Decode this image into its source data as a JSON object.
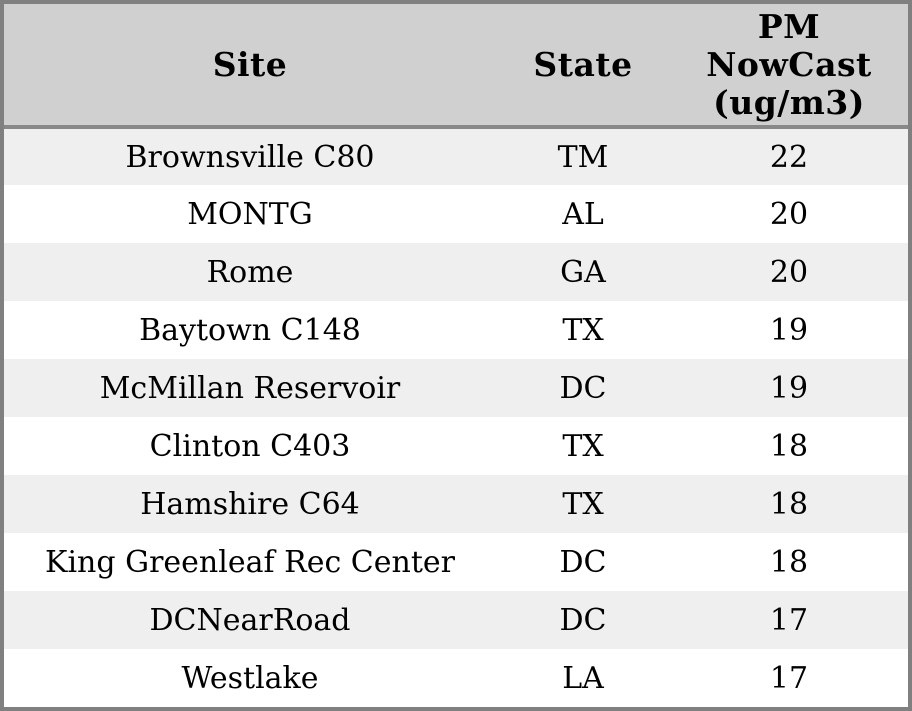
{
  "colors": {
    "outer_border": "#808080",
    "header_bg": "#d0d0d0",
    "header_separator": "#888888",
    "row_stripe_bg": "#efefef",
    "row_bg": "#ffffff",
    "text": "#000000"
  },
  "table": {
    "headers": {
      "site": "Site",
      "state": "State",
      "pm": "PM NowCast (ug/m3)"
    },
    "rows": [
      {
        "site": "Brownsville C80",
        "state": "TM",
        "pm": 22
      },
      {
        "site": "MONTG",
        "state": "AL",
        "pm": 20
      },
      {
        "site": "Rome",
        "state": "GA",
        "pm": 20
      },
      {
        "site": "Baytown C148",
        "state": "TX",
        "pm": 19
      },
      {
        "site": "McMillan Reservoir",
        "state": "DC",
        "pm": 19
      },
      {
        "site": "Clinton C403",
        "state": "TX",
        "pm": 18
      },
      {
        "site": "Hamshire C64",
        "state": "TX",
        "pm": 18
      },
      {
        "site": "King Greenleaf Rec Center",
        "state": "DC",
        "pm": 18
      },
      {
        "site": "DCNearRoad",
        "state": "DC",
        "pm": 17
      },
      {
        "site": "Westlake",
        "state": "LA",
        "pm": 17
      }
    ]
  },
  "chart_data": {
    "type": "table",
    "columns": [
      "Site",
      "State",
      "PM NowCast (ug/m3)"
    ],
    "rows": [
      [
        "Brownsville C80",
        "TM",
        22
      ],
      [
        "MONTG",
        "AL",
        20
      ],
      [
        "Rome",
        "GA",
        20
      ],
      [
        "Baytown C148",
        "TX",
        19
      ],
      [
        "McMillan Reservoir",
        "DC",
        19
      ],
      [
        "Clinton C403",
        "TX",
        18
      ],
      [
        "Hamshire C64",
        "TX",
        18
      ],
      [
        "King Greenleaf Rec Center",
        "DC",
        18
      ],
      [
        "DCNearRoad",
        "DC",
        17
      ],
      [
        "Westlake",
        "LA",
        17
      ]
    ],
    "layout": {
      "header_row": true,
      "row_striping": "alternating",
      "cell_alignment": "center"
    }
  }
}
